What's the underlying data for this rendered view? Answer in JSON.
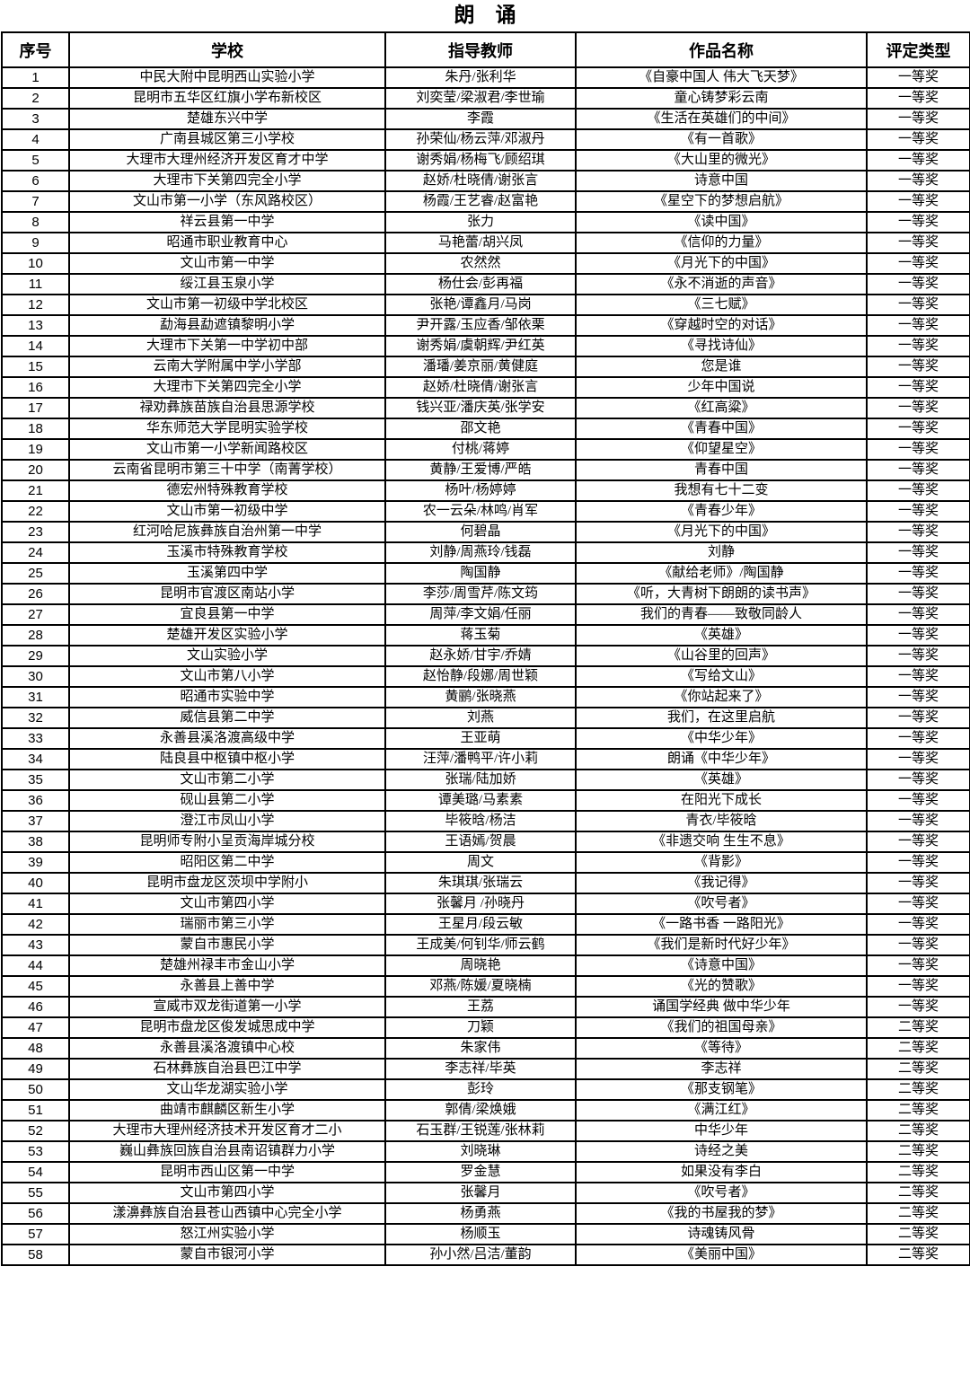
{
  "title": "朗　诵",
  "table": {
    "headers": [
      "序号",
      "学校",
      "指导教师",
      "作品名称",
      "评定类型"
    ],
    "rows": [
      [
        "1",
        "中民大附中昆明西山实验小学",
        "朱丹/张利华",
        "《自豪中国人 伟大飞天梦》",
        "一等奖"
      ],
      [
        "2",
        "昆明市五华区红旗小学布新校区",
        "刘奕莹/梁淑君/李世瑜",
        "童心铸梦彩云南",
        "一等奖"
      ],
      [
        "3",
        "楚雄东兴中学",
        "李霞",
        "《生活在英雄们的中间》",
        "一等奖"
      ],
      [
        "4",
        "广南县城区第三小学校",
        "孙荣仙/杨云萍/邓淑丹",
        "《有一首歌》",
        "一等奖"
      ],
      [
        "5",
        "大理市大理州经济开发区育才中学",
        "谢秀娟/杨梅飞/顾绍琪",
        "《大山里的微光》",
        "一等奖"
      ],
      [
        "6",
        "大理市下关第四完全小学",
        "赵娇/杜晓倩/谢张言",
        "诗意中国",
        "一等奖"
      ],
      [
        "7",
        "文山市第一小学（东风路校区）",
        "杨霞/王艺睿/赵富艳",
        "《星空下的梦想启航》",
        "一等奖"
      ],
      [
        "8",
        "祥云县第一中学",
        "张力",
        "《读中国》",
        "一等奖"
      ],
      [
        "9",
        "昭通市职业教育中心",
        "马艳蕾/胡兴凤",
        "《信仰的力量》",
        "一等奖"
      ],
      [
        "10",
        "文山市第一中学",
        "农然然",
        "《月光下的中国》",
        "一等奖"
      ],
      [
        "11",
        "绥江县玉泉小学",
        "杨仕会/彭再福",
        "《永不消逝的声音》",
        "一等奖"
      ],
      [
        "12",
        "文山市第一初级中学北校区",
        "张艳/谭鑫月/马岗",
        "《三七赋》",
        "一等奖"
      ],
      [
        "13",
        "勐海县勐遮镇黎明小学",
        "尹开露/玉应香/邹依栗",
        "《穿越时空的对话》",
        "一等奖"
      ],
      [
        "14",
        "大理市下关第一中学初中部",
        "谢秀娟/虞朝辉/尹红英",
        "《寻找诗仙》",
        "一等奖"
      ],
      [
        "15",
        "云南大学附属中学小学部",
        "潘璠/姜京丽/黄健庭",
        "您是谁",
        "一等奖"
      ],
      [
        "16",
        "大理市下关第四完全小学",
        "赵娇/杜晓倩/谢张言",
        "少年中国说",
        "一等奖"
      ],
      [
        "17",
        "禄劝彝族苗族自治县思源学校",
        "钱兴亚/潘庆英/张学安",
        "《红高粱》",
        "一等奖"
      ],
      [
        "18",
        "华东师范大学昆明实验学校",
        "邵文艳",
        "《青春中国》",
        "一等奖"
      ],
      [
        "19",
        "文山市第一小学新闻路校区",
        "付桃/蒋婷",
        "《仰望星空》",
        "一等奖"
      ],
      [
        "20",
        "云南省昆明市第三十中学（南菁学校）",
        "黄静/王爱博/严皓",
        "青春中国",
        "一等奖"
      ],
      [
        "21",
        "德宏州特殊教育学校",
        "杨叶/杨婷婷",
        "我想有七十二变",
        "一等奖"
      ],
      [
        "22",
        "文山市第一初级中学",
        "农一云朵/林鸣/肖军",
        "《青春少年》",
        "一等奖"
      ],
      [
        "23",
        "红河哈尼族彝族自治州第一中学",
        "何碧晶",
        "《月光下的中国》",
        "一等奖"
      ],
      [
        "24",
        "玉溪市特殊教育学校",
        "刘静/周燕玲/钱磊",
        "刘静",
        "一等奖"
      ],
      [
        "25",
        "玉溪第四中学",
        "陶国静",
        "《献给老师》/陶国静",
        "一等奖"
      ],
      [
        "26",
        "昆明市官渡区南站小学",
        "李莎/周雪芹/陈文筠",
        "《听，大青树下朗朗的读书声》",
        "一等奖"
      ],
      [
        "27",
        "宜良县第一中学",
        "周萍/李文娟/任丽",
        "我们的青春——致敬同龄人",
        "一等奖"
      ],
      [
        "28",
        "楚雄开发区实验小学",
        "蒋玉菊",
        "《英雄》",
        "一等奖"
      ],
      [
        "29",
        "文山实验小学",
        "赵永娇/甘宇/乔婧",
        "《山谷里的回声》",
        "一等奖"
      ],
      [
        "30",
        "文山市第八小学",
        "赵怡静/段娜/周世颖",
        "《写给文山》",
        "一等奖"
      ],
      [
        "31",
        "昭通市实验中学",
        "黄鹂/张晓燕",
        "《你站起来了》",
        "一等奖"
      ],
      [
        "32",
        "威信县第二中学",
        "刘燕",
        "我们，在这里启航",
        "一等奖"
      ],
      [
        "33",
        "永善县溪洛渡高级中学",
        "王亚萌",
        "《中华少年》",
        "一等奖"
      ],
      [
        "34",
        "陆良县中枢镇中枢小学",
        "汪萍/潘鸭平/许小莉",
        "朗诵《中华少年》",
        "一等奖"
      ],
      [
        "35",
        "文山市第二小学",
        "张瑞/陆加娇",
        "《英雄》",
        "一等奖"
      ],
      [
        "36",
        "砚山县第二小学",
        "谭美璐/马素素",
        "在阳光下成长",
        "一等奖"
      ],
      [
        "37",
        "澄江市凤山小学",
        "毕筱晗/杨洁",
        "青衣/毕筱晗",
        "一等奖"
      ],
      [
        "38",
        "昆明师专附小呈贡海岸城分校",
        "王语嫣/贺晨",
        "《非遗交响 生生不息》",
        "一等奖"
      ],
      [
        "39",
        "昭阳区第二中学",
        "周文",
        "《背影》",
        "一等奖"
      ],
      [
        "40",
        "昆明市盘龙区茨坝中学附小",
        "朱琪琪/张瑞云",
        "《我记得》",
        "一等奖"
      ],
      [
        "41",
        "文山市第四小学",
        "张馨月 /孙晓丹",
        "《吹号者》",
        "一等奖"
      ],
      [
        "42",
        "瑞丽市第三小学",
        "王星月/段云敏",
        "《一路书香 一路阳光》",
        "一等奖"
      ],
      [
        "43",
        "蒙自市惠民小学",
        "王成美/何钊华/师云鹤",
        "《我们是新时代好少年》",
        "一等奖"
      ],
      [
        "44",
        "楚雄州禄丰市金山小学",
        "周晓艳",
        "《诗意中国》",
        "一等奖"
      ],
      [
        "45",
        "永善县上善中学",
        "邓燕/陈媛/夏晓楠",
        "《光的赞歌》",
        "一等奖"
      ],
      [
        "46",
        "宣威市双龙街道第一小学",
        "王荔",
        "诵国学经典 做中华少年",
        "一等奖"
      ],
      [
        "47",
        "昆明市盘龙区俊发城思成中学",
        "刀颖",
        "《我们的祖国母亲》",
        "二等奖"
      ],
      [
        "48",
        "永善县溪洛渡镇中心校",
        "朱家伟",
        "《等待》",
        "二等奖"
      ],
      [
        "49",
        "石林彝族自治县巴江中学",
        "李志祥/毕英",
        "李志祥",
        "二等奖"
      ],
      [
        "50",
        "文山华龙湖实验小学",
        "彭玲",
        "《那支钢笔》",
        "二等奖"
      ],
      [
        "51",
        "曲靖市麒麟区新生小学",
        "郭倩/梁焕娥",
        "《满江红》",
        "二等奖"
      ],
      [
        "52",
        "大理市大理州经济技术开发区育才二小",
        "石玉群/王锐莲/张林莉",
        "中华少年",
        "二等奖"
      ],
      [
        "53",
        "巍山彝族回族自治县南诏镇群力小学",
        "刘晓琳",
        "诗经之美",
        "二等奖"
      ],
      [
        "54",
        "昆明市西山区第一中学",
        "罗金慧",
        "如果没有李白",
        "二等奖"
      ],
      [
        "55",
        "文山市第四小学",
        "张馨月",
        "《吹号者》",
        "二等奖"
      ],
      [
        "56",
        "漾濞彝族自治县苍山西镇中心完全小学",
        "杨勇燕",
        "《我的书屋我的梦》",
        "二等奖"
      ],
      [
        "57",
        "怒江州实验小学",
        "杨顺玉",
        "诗魂铸风骨",
        "二等奖"
      ],
      [
        "58",
        "蒙自市银河小学",
        "孙小然/吕洁/董韵",
        "《美丽中国》",
        "二等奖"
      ]
    ]
  },
  "colors": {
    "border": "#000000",
    "text": "#000000",
    "background": "#ffffff"
  },
  "cell_names": [
    "row-number",
    "school-cell",
    "teacher-cell",
    "work-title-cell",
    "award-cell"
  ]
}
